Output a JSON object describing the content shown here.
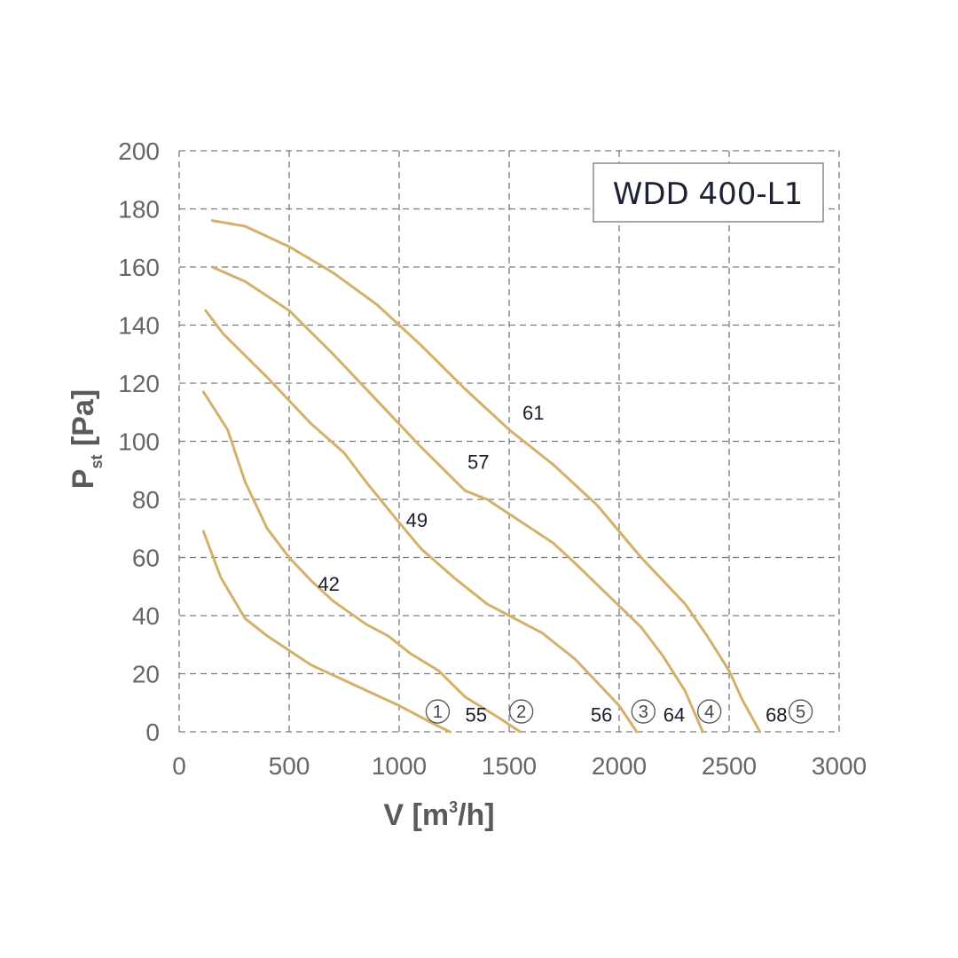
{
  "chart_data": {
    "type": "line",
    "model": "WDD 400-L1",
    "xlabel": {
      "main": "V [m",
      "sup": "3",
      "tail": "/h]"
    },
    "ylabel": {
      "main": "P",
      "sub": "st",
      "tail": " [Pa]"
    },
    "xlim": [
      0,
      3000
    ],
    "ylim": [
      0,
      200
    ],
    "xticks": [
      0,
      500,
      1000,
      1500,
      2000,
      2500,
      3000
    ],
    "yticks": [
      0,
      20,
      40,
      60,
      80,
      100,
      120,
      140,
      160,
      180,
      200
    ],
    "grid": true,
    "curve_color": "#d4b06a",
    "series": [
      {
        "id": "1",
        "points": [
          [
            110,
            69
          ],
          [
            190,
            53
          ],
          [
            300,
            39
          ],
          [
            400,
            33
          ],
          [
            600,
            23
          ],
          [
            800,
            16
          ],
          [
            1000,
            9
          ],
          [
            1150,
            3
          ],
          [
            1230,
            0
          ]
        ]
      },
      {
        "id": "2",
        "points": [
          [
            110,
            117
          ],
          [
            220,
            104
          ],
          [
            300,
            86
          ],
          [
            400,
            70
          ],
          [
            500,
            60
          ],
          [
            600,
            52
          ],
          [
            700,
            45
          ],
          [
            850,
            37
          ],
          [
            950,
            33
          ],
          [
            1050,
            27
          ],
          [
            1180,
            21
          ],
          [
            1300,
            12
          ],
          [
            1450,
            5
          ],
          [
            1550,
            0
          ]
        ]
      },
      {
        "id": "3",
        "points": [
          [
            120,
            145
          ],
          [
            200,
            137
          ],
          [
            400,
            122
          ],
          [
            600,
            106
          ],
          [
            750,
            96
          ],
          [
            850,
            86
          ],
          [
            1000,
            72
          ],
          [
            1100,
            63
          ],
          [
            1250,
            53
          ],
          [
            1400,
            44
          ],
          [
            1500,
            40
          ],
          [
            1650,
            34
          ],
          [
            1800,
            25
          ],
          [
            1950,
            13
          ],
          [
            2000,
            9
          ],
          [
            2080,
            0
          ]
        ]
      },
      {
        "id": "4",
        "points": [
          [
            150,
            160
          ],
          [
            300,
            155
          ],
          [
            500,
            145
          ],
          [
            700,
            130
          ],
          [
            900,
            114
          ],
          [
            1100,
            98
          ],
          [
            1300,
            83
          ],
          [
            1400,
            80
          ],
          [
            1700,
            65
          ],
          [
            1800,
            58
          ],
          [
            1950,
            47
          ],
          [
            2100,
            36
          ],
          [
            2200,
            26
          ],
          [
            2300,
            14
          ],
          [
            2380,
            0
          ]
        ]
      },
      {
        "id": "5",
        "points": [
          [
            150,
            176
          ],
          [
            300,
            174
          ],
          [
            500,
            167
          ],
          [
            700,
            158
          ],
          [
            900,
            147
          ],
          [
            1100,
            133
          ],
          [
            1300,
            118
          ],
          [
            1500,
            104
          ],
          [
            1700,
            92
          ],
          [
            1900,
            78
          ],
          [
            2100,
            60
          ],
          [
            2300,
            44
          ],
          [
            2400,
            33
          ],
          [
            2500,
            21
          ],
          [
            2560,
            11
          ],
          [
            2640,
            0
          ]
        ]
      }
    ],
    "curve_labels": [
      {
        "text": "42",
        "x": 680,
        "y": 51
      },
      {
        "text": "49",
        "x": 1080,
        "y": 73
      },
      {
        "text": "57",
        "x": 1360,
        "y": 93
      },
      {
        "text": "61",
        "x": 1610,
        "y": 110
      }
    ],
    "bottom_labels": [
      {
        "text": "55",
        "x": 1350,
        "y": 6
      },
      {
        "text": "56",
        "x": 1920,
        "y": 6
      },
      {
        "text": "64",
        "x": 2250,
        "y": 6
      },
      {
        "text": "68",
        "x": 2715,
        "y": 6
      }
    ],
    "circled_numbers": [
      {
        "text": "1",
        "x": 1175,
        "y": 7
      },
      {
        "text": "2",
        "x": 1555,
        "y": 7
      },
      {
        "text": "3",
        "x": 2110,
        "y": 7
      },
      {
        "text": "4",
        "x": 2410,
        "y": 7
      },
      {
        "text": "5",
        "x": 2825,
        "y": 7
      }
    ]
  }
}
